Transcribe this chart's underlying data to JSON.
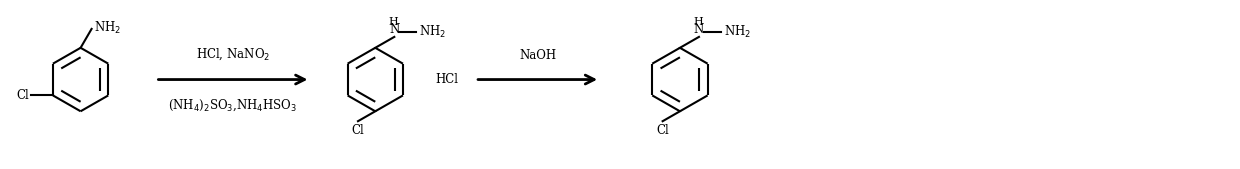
{
  "figsize": [
    12.4,
    1.69
  ],
  "dpi": 100,
  "background": "#ffffff",
  "reaction_step1_above": "HCl, NaNO$_2$",
  "reaction_step1_below": "(NH$_4$)$_2$SO$_3$,NH$_4$HSO$_3$",
  "reaction_step2": "NaOH",
  "intermediate_label": "HCl",
  "text_color": "#000000",
  "line_color": "#000000",
  "line_width": 1.5,
  "font_size": 8.5
}
